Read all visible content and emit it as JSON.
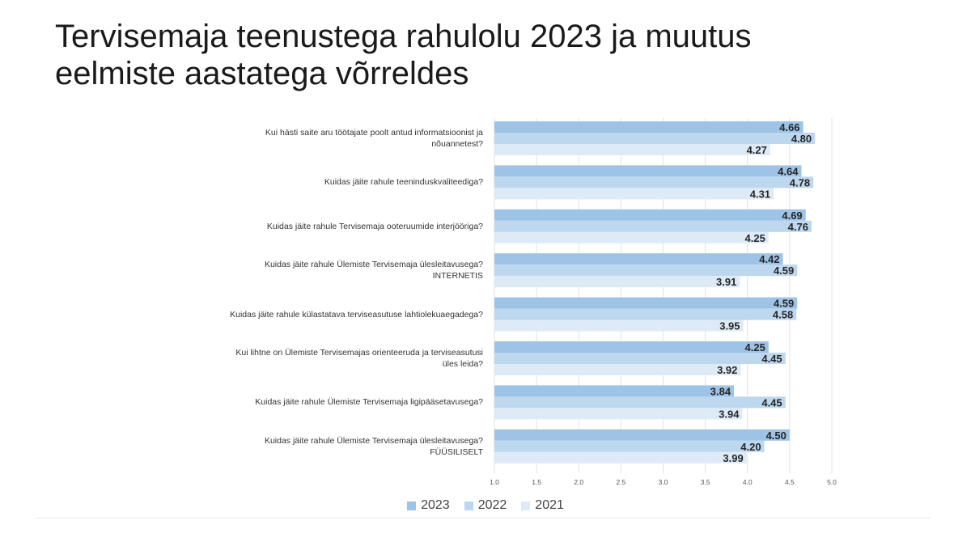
{
  "slide": {
    "title_line1": "Tervisemaja teenustega rahulolu 2023 ja muutus",
    "title_line2": "eelmiste aastatega võrreldes"
  },
  "colors": {
    "2023": "#9dc3e6",
    "2022": "#bdd7ee",
    "2021": "#deebf7",
    "grid": "#e2e2e2",
    "value_text": "#262626"
  },
  "chart_data": {
    "type": "bar",
    "orientation": "horizontal",
    "categories": [
      [
        "Kui hästi saite aru töötajate poolt antud informatsioonist ja",
        "nõuannetest?"
      ],
      [
        "Kuidas jäite rahule teeninduskvaliteediga?"
      ],
      [
        "Kuidas jäite rahule Tervisemaja ooteruumide interjööriga?"
      ],
      [
        "Kuidas jäite rahule Ülemiste Tervisemaja ülesleitavusega?",
        "INTERNETIS"
      ],
      [
        "Kuidas jäite rahule külastatava terviseasutuse lahtiolekuaegadega?"
      ],
      [
        "Kui lihtne on Ülemiste Tervisemajas orienteeruda ja terviseasutusi",
        "üles leida?"
      ],
      [
        "Kuidas jäite rahule Ülemiste Tervisemaja ligipääsetavusega?"
      ],
      [
        "Kuidas jäite rahule Ülemiste Tervisemaja ülesleitavusega?",
        "FÜÜSILISELT"
      ]
    ],
    "series": [
      {
        "name": "2023",
        "values": [
          4.66,
          4.64,
          4.69,
          4.42,
          4.59,
          4.25,
          3.84,
          4.5
        ]
      },
      {
        "name": "2022",
        "values": [
          4.8,
          4.78,
          4.76,
          4.59,
          4.58,
          4.45,
          4.45,
          4.2
        ]
      },
      {
        "name": "2021",
        "values": [
          4.27,
          4.31,
          4.25,
          3.91,
          3.95,
          3.92,
          3.94,
          3.99
        ]
      }
    ],
    "xlim": [
      1.0,
      5.0
    ],
    "xticks": [
      "1.0",
      "1.5",
      "2.0",
      "2.5",
      "3.0",
      "3.5",
      "4.0",
      "4.5",
      "5.0"
    ],
    "grid": true,
    "legend_position": "bottom"
  }
}
